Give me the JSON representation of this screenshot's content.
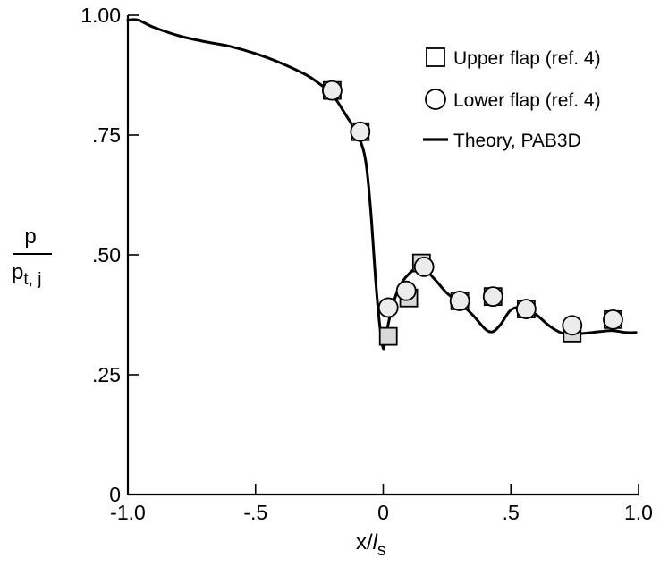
{
  "chart_data": {
    "type": "scatter",
    "title": "",
    "xlabel_main": "x/",
    "xlabel_italic": "l",
    "xlabel_sub": "s",
    "ylabel_numerator": "p",
    "ylabel_denominator_main": "p",
    "ylabel_denominator_sub": "t, j",
    "xlim": [
      -1.0,
      1.0
    ],
    "ylim": [
      0,
      1.0
    ],
    "x_ticks": [
      -1.0,
      -0.5,
      0,
      0.5,
      1.0
    ],
    "x_tick_labels": [
      "-1.0",
      "-.5",
      "0",
      ".5",
      "1.0"
    ],
    "y_ticks": [
      0,
      0.25,
      0.5,
      0.75,
      1.0
    ],
    "y_tick_labels": [
      "0",
      ".25",
      ".50",
      ".75",
      "1.00"
    ],
    "grid": false,
    "legend_position": "top-right",
    "series": [
      {
        "name": "Upper flap (ref. 4)",
        "marker": "square",
        "x": [
          -0.2,
          -0.09,
          0.02,
          0.1,
          0.15,
          0.3,
          0.43,
          0.56,
          0.74,
          0.9
        ],
        "y": [
          0.843,
          0.757,
          0.33,
          0.41,
          0.483,
          0.404,
          0.413,
          0.387,
          0.337,
          0.365
        ]
      },
      {
        "name": "Lower flap (ref. 4)",
        "marker": "circle",
        "x": [
          -0.2,
          -0.09,
          0.02,
          0.09,
          0.16,
          0.3,
          0.43,
          0.56,
          0.74,
          0.9
        ],
        "y": [
          0.843,
          0.757,
          0.39,
          0.425,
          0.475,
          0.404,
          0.413,
          0.387,
          0.353,
          0.365
        ]
      },
      {
        "name": "Theory, PAB3D",
        "marker": "line",
        "x": [
          -1.0,
          -0.96,
          -0.9,
          -0.8,
          -0.7,
          -0.6,
          -0.5,
          -0.4,
          -0.3,
          -0.25,
          -0.2,
          -0.15,
          -0.1,
          -0.07,
          -0.05,
          -0.03,
          -0.015,
          0,
          0.01,
          0.03,
          0.06,
          0.1,
          0.15,
          0.2,
          0.25,
          0.3,
          0.35,
          0.4,
          0.43,
          0.46,
          0.5,
          0.55,
          0.6,
          0.65,
          0.7,
          0.75,
          0.8,
          0.85,
          0.9,
          0.95,
          0.99
        ],
        "y": [
          0.99,
          0.99,
          0.975,
          0.957,
          0.945,
          0.935,
          0.92,
          0.9,
          0.875,
          0.857,
          0.835,
          0.795,
          0.75,
          0.7,
          0.6,
          0.45,
          0.36,
          0.305,
          0.33,
          0.38,
          0.43,
          0.46,
          0.475,
          0.45,
          0.42,
          0.4,
          0.375,
          0.345,
          0.34,
          0.355,
          0.385,
          0.39,
          0.375,
          0.352,
          0.337,
          0.335,
          0.337,
          0.34,
          0.342,
          0.338,
          0.338
        ]
      }
    ]
  }
}
